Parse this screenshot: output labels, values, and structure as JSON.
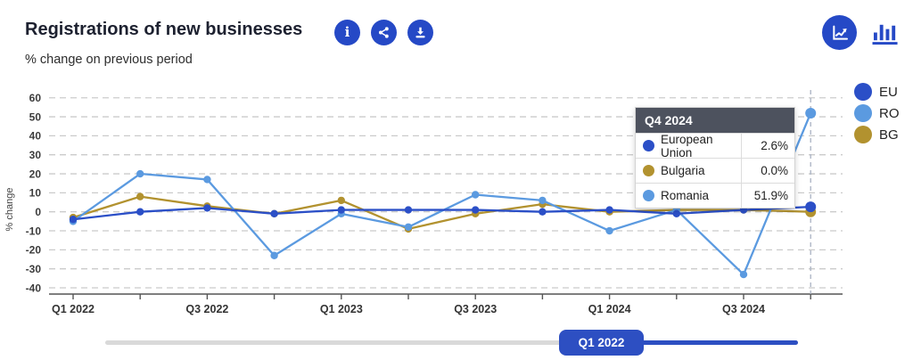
{
  "header": {
    "title": "Registrations of new businesses",
    "subtitle": "% change on previous period",
    "buttons": [
      {
        "label": "info",
        "icon": "info-icon"
      },
      {
        "label": "share",
        "icon": "share-icon"
      },
      {
        "label": "download",
        "icon": "download-icon"
      }
    ],
    "view_toggles": [
      {
        "label": "line chart",
        "selected": true
      },
      {
        "label": "bar chart",
        "selected": false
      }
    ]
  },
  "legend": [
    {
      "id": "eu",
      "label": "EU",
      "color": "#2b4fc7"
    },
    {
      "id": "ro",
      "label": "RO",
      "color": "#5b9ae0"
    },
    {
      "id": "bg",
      "label": "BG",
      "color": "#b2922f"
    }
  ],
  "chart_data": {
    "type": "line",
    "title": "Registrations of new businesses",
    "subtitle": "% change on previous period",
    "xlabel": "",
    "ylabel": "% change",
    "ylim": [
      -40,
      60
    ],
    "y_ticks": [
      60,
      50,
      40,
      30,
      20,
      10,
      0,
      -10,
      -20,
      -30,
      -40
    ],
    "grid": "dashed-horizontal",
    "legend_position": "right",
    "categories": [
      "Q1 2022",
      "Q2 2022",
      "Q3 2022",
      "Q4 2022",
      "Q1 2023",
      "Q2 2023",
      "Q3 2023",
      "Q4 2023",
      "Q1 2024",
      "Q2 2024",
      "Q3 2024",
      "Q4 2024"
    ],
    "x_tick_labels": [
      "Q1 2022",
      "Q3 2022",
      "Q1 2023",
      "Q3 2023",
      "Q1 2024",
      "Q3 2024"
    ],
    "highlighted_category": "Q4 2024",
    "series": [
      {
        "id": "eu",
        "name": "European Union",
        "short": "EU",
        "color": "#2b4fc7",
        "values": [
          -4,
          0,
          2,
          -1,
          1,
          1,
          1,
          0,
          1,
          -1,
          1,
          2.6
        ]
      },
      {
        "id": "bg",
        "name": "Bulgaria",
        "short": "BG",
        "color": "#b2922f",
        "values": [
          -3,
          8,
          3,
          -1,
          6,
          -9,
          -1,
          4,
          0,
          1,
          1,
          0
        ]
      },
      {
        "id": "ro",
        "name": "Romania",
        "short": "RO",
        "color": "#5b9ae0",
        "values": [
          -5,
          20,
          17,
          -23,
          -1,
          -8,
          9,
          6,
          -10,
          1,
          -33,
          51.9
        ]
      }
    ]
  },
  "tooltip": {
    "title": "Q4 2024",
    "rows": [
      {
        "label": "European Union",
        "value": "2.6%",
        "color": "#2b4fc7"
      },
      {
        "label": "Bulgaria",
        "value": "0.0%",
        "color": "#b2922f"
      },
      {
        "label": "Romania",
        "value": "51.9%",
        "color": "#5b9ae0"
      }
    ]
  },
  "slider": {
    "handle_label": "Q1 2022"
  }
}
